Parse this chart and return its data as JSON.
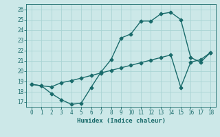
{
  "xlabel": "Humidex (Indice chaleur)",
  "background_color": "#cce8e8",
  "line_color": "#1a6b6b",
  "line1_x": [
    0,
    1,
    2,
    3,
    4,
    5,
    6,
    7,
    8,
    9,
    10,
    11,
    12,
    13,
    14,
    15,
    16,
    17,
    18
  ],
  "line1_y": [
    18.7,
    18.55,
    17.8,
    17.2,
    16.75,
    16.85,
    18.4,
    19.9,
    21.1,
    23.2,
    23.6,
    24.85,
    24.85,
    25.55,
    25.7,
    25.0,
    21.3,
    20.85,
    21.8
  ],
  "line2_x": [
    0,
    1,
    2,
    3,
    4,
    5,
    6,
    7,
    8,
    9,
    10,
    11,
    12,
    13,
    14,
    15,
    16,
    17,
    18
  ],
  "line2_y": [
    18.7,
    18.55,
    18.45,
    18.85,
    19.05,
    19.3,
    19.55,
    19.8,
    20.05,
    20.3,
    20.55,
    20.8,
    21.05,
    21.3,
    21.55,
    18.4,
    20.85,
    21.1,
    21.8
  ],
  "xlim": [
    -0.5,
    18.5
  ],
  "ylim": [
    16.5,
    26.5
  ],
  "yticks": [
    17,
    18,
    19,
    20,
    21,
    22,
    23,
    24,
    25,
    26
  ],
  "xticks": [
    0,
    1,
    2,
    3,
    4,
    5,
    6,
    7,
    8,
    9,
    10,
    11,
    12,
    13,
    14,
    15,
    16,
    17,
    18
  ],
  "grid_color": "#aad4d4",
  "marker": "D",
  "marker_size": 2.5,
  "line_width": 1.0
}
